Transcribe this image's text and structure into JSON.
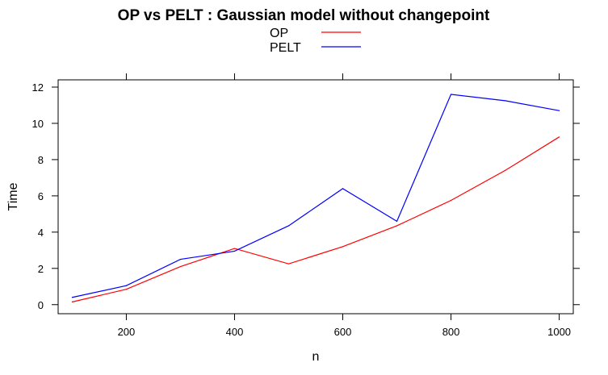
{
  "chart_data": {
    "type": "line",
    "title": "OP vs PELT : Gaussian model without changepoint",
    "xlabel": "n",
    "ylabel": "Time",
    "x": [
      100,
      200,
      300,
      400,
      500,
      600,
      700,
      800,
      900,
      1000
    ],
    "xlim": [
      74,
      1026
    ],
    "ylim": [
      -0.5,
      12.4
    ],
    "xticks": [
      200,
      400,
      600,
      800,
      1000
    ],
    "yticks": [
      0,
      2,
      4,
      6,
      8,
      10,
      12
    ],
    "legend_position": "top-center",
    "grid": false,
    "series": [
      {
        "name": "OP",
        "color": "#ff0000",
        "values": [
          0.15,
          0.85,
          2.1,
          3.1,
          2.25,
          3.2,
          4.35,
          5.75,
          7.4,
          9.25
        ]
      },
      {
        "name": "PELT",
        "color": "#0000ff",
        "values": [
          0.4,
          1.05,
          2.5,
          2.95,
          4.35,
          6.4,
          4.6,
          11.6,
          11.25,
          10.7
        ]
      }
    ]
  }
}
